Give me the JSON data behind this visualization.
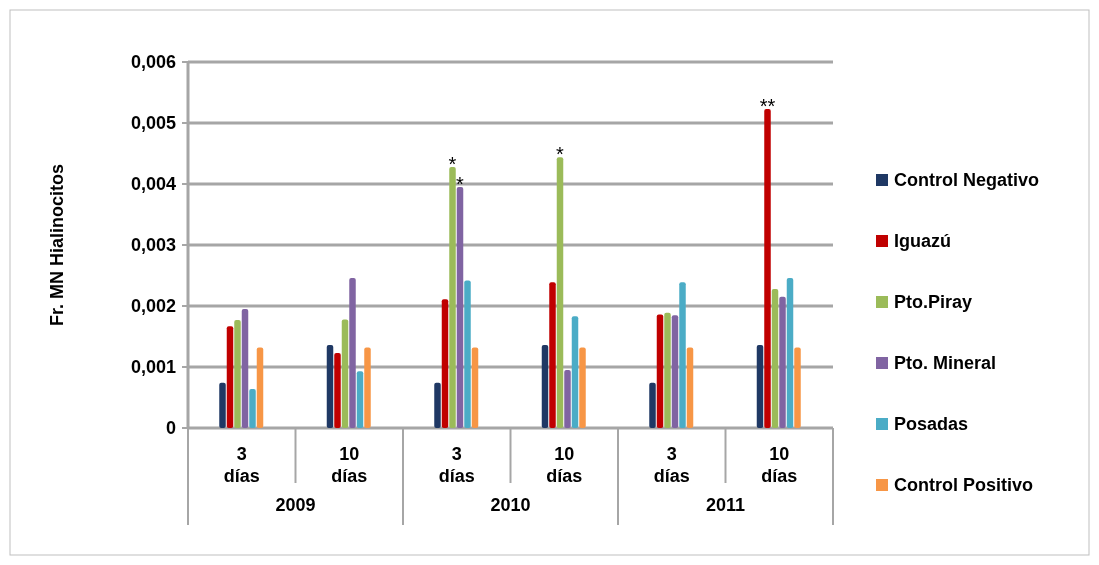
{
  "chart_data": {
    "type": "bar",
    "ylabel": "Fr. MN Hialinocitos",
    "categories": [
      "3 días",
      "10 días",
      "3 días",
      "10 días",
      "3 días",
      "10 días"
    ],
    "annotations": [
      "2009",
      "2010",
      "2011"
    ],
    "ylim": [
      0,
      0.006
    ],
    "yticks": [
      0,
      {
        "value": 0.001,
        "label": "0,001"
      },
      {
        "value": 0.002,
        "label": "0,002"
      },
      {
        "value": 0.003,
        "label": "0,003"
      },
      {
        "value": 0.004,
        "label": "0,004"
      },
      {
        "value": 0.005,
        "label": "0,005"
      },
      {
        "value": 0.006,
        "label": "0,006"
      }
    ],
    "grid": "y",
    "legend": "right",
    "series": [
      {
        "name": "Control Negativo",
        "color": "#1f3864",
        "values": [
          0.00074,
          0.00136,
          0.00074,
          0.00136,
          0.00074,
          0.00136
        ]
      },
      {
        "name": "Iguazú",
        "color": "#c00000",
        "values": [
          0.00167,
          0.00123,
          0.00211,
          0.00239,
          0.00186,
          0.00523
        ],
        "value_labels": [
          null,
          null,
          null,
          null,
          null,
          "**"
        ]
      },
      {
        "name": "Pto.Piray",
        "color": "#9bbb59",
        "values": [
          0.00177,
          0.00178,
          0.00428,
          0.00444,
          0.00189,
          0.00228
        ],
        "value_labels": [
          null,
          null,
          "*",
          "*",
          null,
          null
        ]
      },
      {
        "name": "Pto. Mineral",
        "color": "#8064a2",
        "values": [
          0.00195,
          0.00246,
          0.00395,
          0.00095,
          0.00185,
          0.00215
        ],
        "value_labels": [
          null,
          null,
          "*",
          null,
          null,
          null
        ]
      },
      {
        "name": "Posadas",
        "color": "#4bacc6",
        "values": [
          0.00064,
          0.00093,
          0.00242,
          0.00183,
          0.00239,
          0.00246
        ]
      },
      {
        "name": "Control Positivo",
        "color": "#f79646",
        "values": [
          0.00132,
          0.00132,
          0.00132,
          0.00132,
          0.00132,
          0.00132
        ]
      }
    ]
  }
}
